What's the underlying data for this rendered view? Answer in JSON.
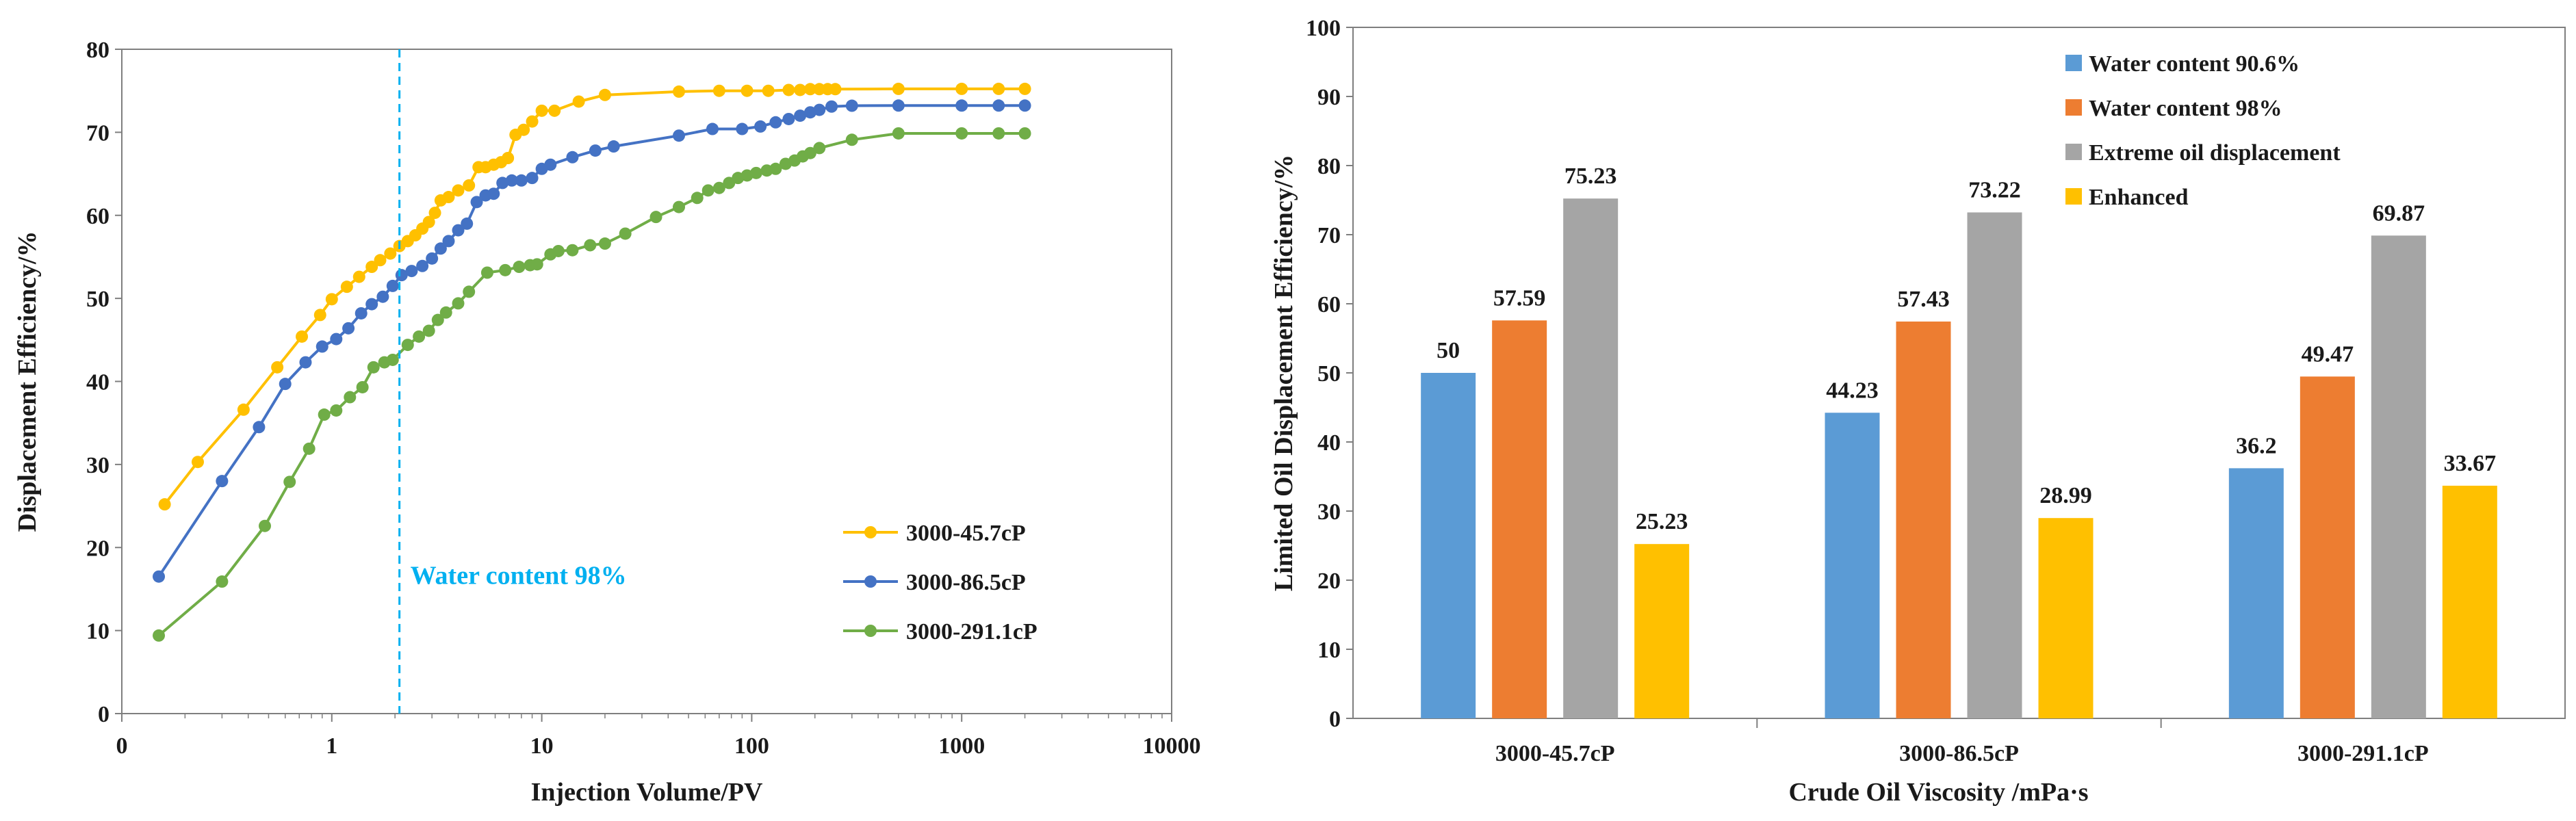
{
  "chart_data": [
    {
      "type": "line",
      "title": "",
      "xlabel": "Injection Volume/PV",
      "ylabel": "Displacement Efficiency/%",
      "xscale": "log",
      "xlim": [
        0.1,
        10000
      ],
      "ylim": [
        0,
        80
      ],
      "xticks": [
        0.1,
        1,
        10,
        100,
        1000,
        10000
      ],
      "xtick_labels": [
        "0",
        "1",
        "10",
        "100",
        "1000",
        "10000"
      ],
      "yticks": [
        0,
        10,
        20,
        30,
        40,
        50,
        60,
        70,
        80
      ],
      "ytick_labels": [
        "0",
        "10",
        "20",
        "30",
        "40",
        "50",
        "60",
        "70",
        "80"
      ],
      "grid": false,
      "legend_position": "bottom-right",
      "annotation": {
        "text": "Water content 98%",
        "x": 2.1,
        "color": "#00B0F0"
      },
      "series": [
        {
          "name": "3000-45.7cP",
          "color": "#FFC000",
          "x": [
            0.16,
            0.23,
            0.38,
            0.55,
            0.72,
            0.88,
            1.0,
            1.18,
            1.35,
            1.55,
            1.7,
            1.9,
            2.1,
            2.3,
            2.5,
            2.7,
            2.9,
            3.1,
            3.3,
            3.6,
            4.0,
            4.5,
            5.0,
            5.4,
            5.9,
            6.4,
            6.9,
            7.5,
            8.2,
            9.0,
            10,
            11.5,
            15,
            20,
            45,
            70,
            95,
            120,
            150,
            170,
            190,
            210,
            230,
            250,
            500,
            1000,
            1500,
            2000
          ],
          "values": [
            25.2,
            30.3,
            36.6,
            41.7,
            45.4,
            48.0,
            49.9,
            51.4,
            52.6,
            53.8,
            54.6,
            55.4,
            56.3,
            56.9,
            57.6,
            58.4,
            59.2,
            60.3,
            61.8,
            62.2,
            63.0,
            63.6,
            65.8,
            65.8,
            66.1,
            66.4,
            66.9,
            69.7,
            70.3,
            71.3,
            72.6,
            72.6,
            73.7,
            74.5,
            74.9,
            75.0,
            75.0,
            75.0,
            75.1,
            75.1,
            75.2,
            75.2,
            75.2,
            75.2,
            75.23,
            75.23,
            75.23,
            75.23
          ]
        },
        {
          "name": "3000-86.5cP",
          "color": "#4472C4",
          "x": [
            0.15,
            0.3,
            0.45,
            0.6,
            0.75,
            0.9,
            1.05,
            1.2,
            1.38,
            1.55,
            1.75,
            1.95,
            2.15,
            2.4,
            2.7,
            3.0,
            3.3,
            3.6,
            4.0,
            4.4,
            4.9,
            5.4,
            5.9,
            6.5,
            7.2,
            8.0,
            9.0,
            10,
            11,
            14,
            18,
            22,
            45,
            65,
            90,
            110,
            130,
            150,
            170,
            190,
            210,
            240,
            300,
            500,
            1000,
            1500,
            2000
          ],
          "values": [
            16.5,
            28.0,
            34.5,
            39.7,
            42.3,
            44.2,
            45.1,
            46.4,
            48.2,
            49.3,
            50.2,
            51.5,
            52.8,
            53.3,
            53.9,
            54.8,
            56.0,
            56.9,
            58.2,
            59.0,
            61.6,
            62.4,
            62.6,
            63.9,
            64.2,
            64.2,
            64.5,
            65.6,
            66.1,
            67.0,
            67.8,
            68.3,
            69.6,
            70.4,
            70.4,
            70.7,
            71.2,
            71.6,
            72.0,
            72.4,
            72.7,
            73.1,
            73.2,
            73.22,
            73.22,
            73.22,
            73.22
          ]
        },
        {
          "name": "3000-291.1cP",
          "color": "#70AD47",
          "x": [
            0.15,
            0.3,
            0.48,
            0.63,
            0.78,
            0.92,
            1.05,
            1.22,
            1.4,
            1.58,
            1.78,
            1.95,
            2.3,
            2.6,
            2.9,
            3.2,
            3.5,
            4.0,
            4.5,
            5.5,
            6.7,
            7.8,
            8.8,
            9.5,
            11,
            12,
            14,
            17,
            20,
            25,
            35,
            45,
            55,
            62,
            70,
            78,
            86,
            95,
            105,
            118,
            130,
            145,
            160,
            175,
            190,
            210,
            300,
            500,
            1000,
            1500,
            2000
          ],
          "values": [
            9.4,
            15.9,
            22.6,
            27.9,
            31.9,
            36.0,
            36.5,
            38.1,
            39.3,
            41.7,
            42.3,
            42.6,
            44.4,
            45.4,
            46.1,
            47.4,
            48.3,
            49.4,
            50.8,
            53.1,
            53.4,
            53.8,
            54.0,
            54.1,
            55.3,
            55.7,
            55.8,
            56.4,
            56.6,
            57.8,
            59.8,
            61.0,
            62.1,
            63.0,
            63.3,
            63.9,
            64.5,
            64.8,
            65.1,
            65.4,
            65.6,
            66.2,
            66.6,
            67.1,
            67.5,
            68.1,
            69.1,
            69.87,
            69.87,
            69.87,
            69.87
          ]
        }
      ]
    },
    {
      "type": "bar",
      "title": "",
      "xlabel": "Crude Oil Viscosity /mPa·s",
      "ylabel": "Limited Oil Displacement Efficiency/%",
      "ylim": [
        0,
        100
      ],
      "yticks": [
        0,
        10,
        20,
        30,
        40,
        50,
        60,
        70,
        80,
        90,
        100
      ],
      "grid": false,
      "legend_position": "top-right",
      "categories": [
        "3000-45.7cP",
        "3000-86.5cP",
        "3000-291.1cP"
      ],
      "series": [
        {
          "name": "Water content 90.6%",
          "color": "#5B9BD5",
          "values": [
            50,
            44.23,
            36.2
          ],
          "labels": [
            "50",
            "44.23",
            "36.2"
          ]
        },
        {
          "name": "Water content 98%",
          "color": "#ED7D31",
          "values": [
            57.59,
            57.43,
            49.47
          ],
          "labels": [
            "57.59",
            "57.43",
            "49.47"
          ]
        },
        {
          "name": "Extreme oil displacement",
          "color": "#A5A5A5",
          "values": [
            75.23,
            73.22,
            69.87
          ],
          "labels": [
            "75.23",
            "73.22",
            "69.87"
          ]
        },
        {
          "name": "Enhanced",
          "color": "#FFC000",
          "values": [
            25.23,
            28.99,
            33.67
          ],
          "labels": [
            "25.23",
            "28.99",
            "33.67"
          ]
        }
      ]
    }
  ]
}
